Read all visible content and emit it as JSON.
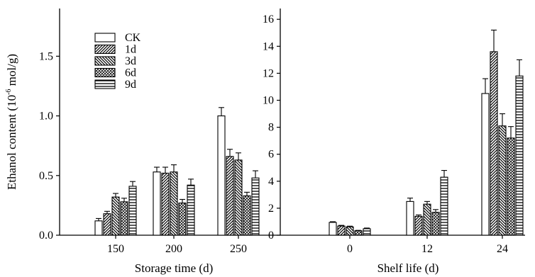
{
  "chart_data": [
    {
      "type": "bar",
      "ylabel": "Ethanol content (10⁻⁶ mol/g)",
      "xlabel": "Storage time (d)",
      "categories": [
        "150",
        "200",
        "250"
      ],
      "ylim": [
        0,
        1.9
      ],
      "yticks": [
        "0.0",
        "0.5",
        "1.0",
        "1.5"
      ],
      "legend_position": "top-left",
      "series": [
        {
          "name": "CK",
          "values": [
            0.12,
            0.53,
            1.0
          ],
          "errors": [
            0.02,
            0.04,
            0.07
          ]
        },
        {
          "name": "1d",
          "values": [
            0.18,
            0.52,
            0.66
          ],
          "errors": [
            0.02,
            0.05,
            0.06
          ]
        },
        {
          "name": "3d",
          "values": [
            0.32,
            0.53,
            0.63
          ],
          "errors": [
            0.03,
            0.06,
            0.06
          ]
        },
        {
          "name": "6d",
          "values": [
            0.28,
            0.27,
            0.33
          ],
          "errors": [
            0.03,
            0.03,
            0.03
          ]
        },
        {
          "name": "9d",
          "values": [
            0.41,
            0.42,
            0.48
          ],
          "errors": [
            0.04,
            0.05,
            0.06
          ]
        }
      ]
    },
    {
      "type": "bar",
      "xlabel": "Shelf life (d)",
      "categories": [
        "0",
        "12",
        "24"
      ],
      "ylim": [
        0,
        16.8
      ],
      "yticks": [
        "0",
        "2",
        "4",
        "6",
        "8",
        "10",
        "12",
        "14",
        "16"
      ],
      "series": [
        {
          "name": "CK",
          "values": [
            0.95,
            2.5,
            10.5
          ],
          "errors": [
            0.05,
            0.25,
            1.1
          ]
        },
        {
          "name": "1d",
          "values": [
            0.68,
            1.4,
            13.6
          ],
          "errors": [
            0.05,
            0.1,
            1.6
          ]
        },
        {
          "name": "3d",
          "values": [
            0.62,
            2.3,
            8.1
          ],
          "errors": [
            0.05,
            0.2,
            0.9
          ]
        },
        {
          "name": "6d",
          "values": [
            0.33,
            1.7,
            7.2
          ],
          "errors": [
            0.03,
            0.2,
            0.85
          ]
        },
        {
          "name": "9d",
          "values": [
            0.48,
            4.3,
            11.8
          ],
          "errors": [
            0.05,
            0.5,
            1.2
          ]
        }
      ]
    }
  ]
}
